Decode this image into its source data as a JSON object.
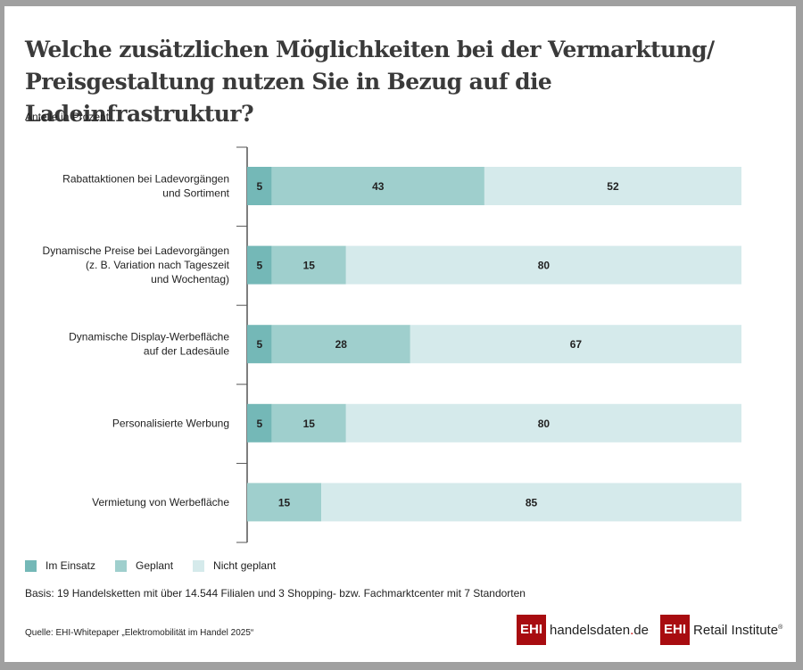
{
  "header": {
    "title": "Welche zusätzlichen Möglichkeiten bei der Vermarktung/ Preisgestaltung nutzen Sie in Bezug auf die Ladeinfrastruktur?",
    "subtitle": "Anteile in Prozent"
  },
  "chart_data": {
    "type": "bar",
    "orientation": "horizontal",
    "stacked": true,
    "title": "Welche zusätzlichen Möglichkeiten bei der Vermarktung/ Preisgestaltung nutzen Sie in Bezug auf die Ladeinfrastruktur?",
    "subtitle": "Anteile in Prozent",
    "xlabel": "",
    "ylabel": "",
    "xlim": [
      0,
      100
    ],
    "grid": false,
    "legend_position": "bottom-left",
    "categories": [
      [
        "Rabattaktionen bei Ladevorgängen",
        "und Sortiment"
      ],
      [
        "Dynamische Preise bei Ladevorgängen",
        "(z. B. Variation nach Tageszeit",
        "und Wochentag)"
      ],
      [
        "Dynamische Display-Werbefläche",
        "auf der Ladesäule"
      ],
      [
        "Personalisierte Werbung"
      ],
      [
        "Vermietung von Werbefläche"
      ]
    ],
    "series": [
      {
        "name": "Im Einsatz",
        "color": "#74b8b7",
        "values": [
          5,
          5,
          5,
          5,
          0
        ]
      },
      {
        "name": "Geplant",
        "color": "#9fcfcd",
        "values": [
          43,
          15,
          28,
          15,
          15
        ]
      },
      {
        "name": "Nicht geplant",
        "color": "#d5eaeb",
        "values": [
          52,
          80,
          67,
          80,
          85
        ]
      }
    ]
  },
  "footer": {
    "basis": "Basis: 19 Handelsketten mit über 14.544 Filialen und 3 Shopping- bzw. Fachmarktcenter mit 7 Standorten",
    "source": "Quelle: EHI-Whitepaper „Elektromobilität im Handel 2025“",
    "logo1_box": "EHI",
    "logo1_text": "handelsdaten",
    "logo1_dot": ".",
    "logo1_tld": "de",
    "logo2_box": "EHI",
    "logo2_text": "Retail Institute",
    "logo2_reg": "®"
  }
}
